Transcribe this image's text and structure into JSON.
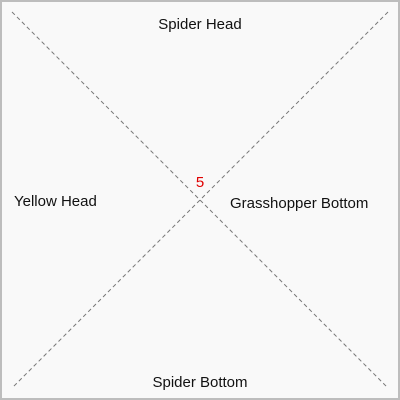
{
  "tile": {
    "number": "5",
    "number_color": "#e00000",
    "background_color": "#f9f9f9",
    "border_color": "#bdbdbd",
    "diagonal_color": "#777777",
    "edges": {
      "top": "Spider Head",
      "left": "Yellow Head",
      "right": "Grasshopper Bottom",
      "bottom": "Spider Bottom"
    }
  }
}
